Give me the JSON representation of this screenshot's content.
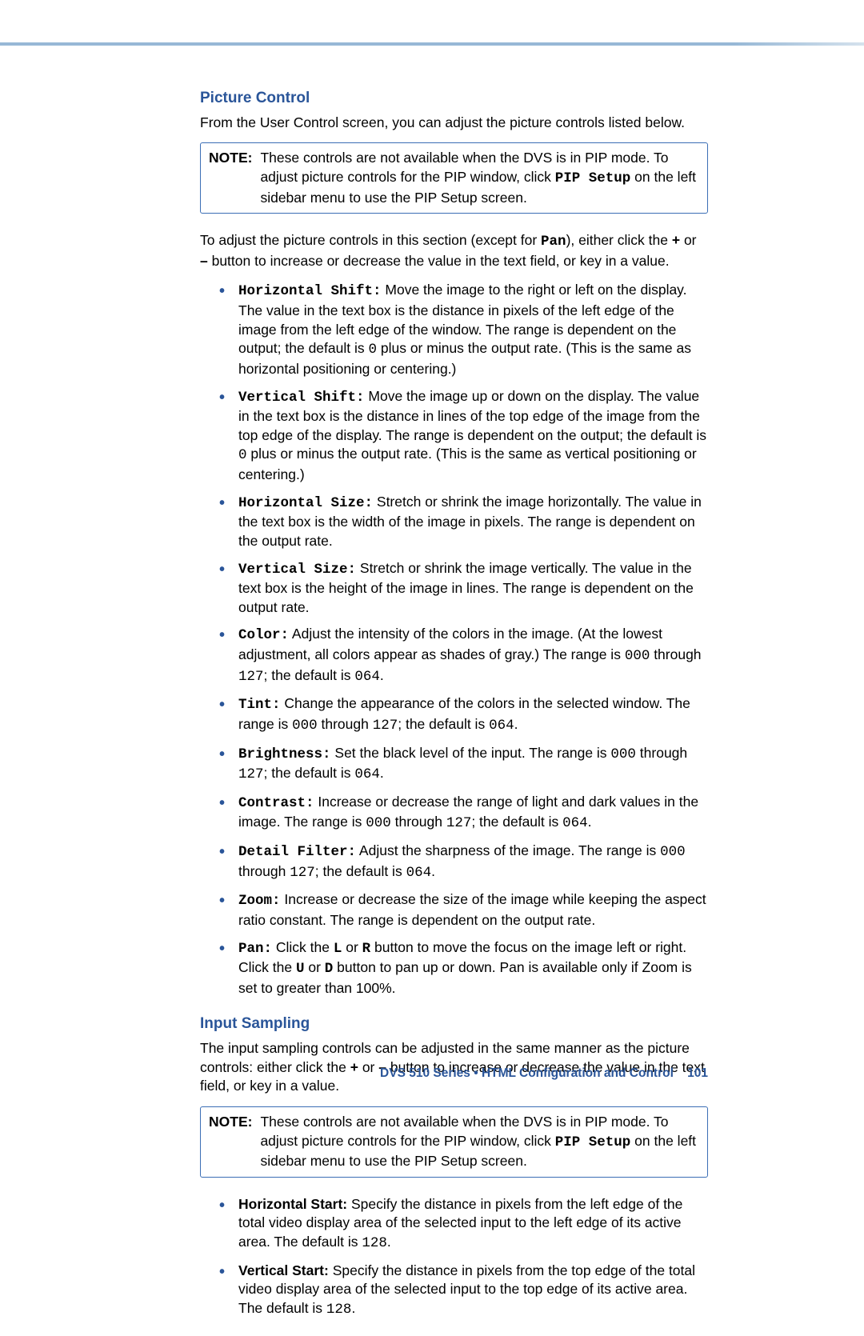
{
  "section1": {
    "heading": "Picture Control",
    "intro": "From the User Control screen, you can adjust the picture controls listed below.",
    "note": {
      "label": "NOTE:",
      "pre": "These controls are not available when the DVS is in PIP mode. To adjust picture controls for the PIP window, click ",
      "code": "PIP Setup",
      "post": " on the left sidebar menu to use the PIP Setup screen."
    },
    "para2": {
      "pre": "To adjust the picture controls in this section (except for ",
      "code1": "Pan",
      "mid1": "), either click the ",
      "plus": "+",
      "mid2": " or ",
      "minus": "–",
      "post": " button to increase or decrease the value in the text field, or key in a value."
    },
    "bullets": [
      {
        "term": "Horizontal Shift:",
        "pre": " Move the image to the right or left on the display. The value in the text box is the distance in pixels of the left edge of the image from the left edge of the window. The range is dependent on the output; the default is ",
        "v": "0",
        "post": " plus or minus the output rate. (This is the same as horizontal positioning or centering.)"
      },
      {
        "term": "Vertical Shift:",
        "pre": " Move the image up or down on the display.  The value in the text box is the distance in lines of the top edge of the image from the top edge of the display. The range is dependent on the output; the default is ",
        "v": "0",
        "post": " plus or minus the output rate. (This is the same as vertical positioning or centering.)"
      },
      {
        "term": "Horizontal Size:",
        "pre": " Stretch or shrink the image horizontally. The value in the text box is the width of the image in pixels. The range is dependent on the output rate.",
        "v": "",
        "post": ""
      },
      {
        "term": "Vertical Size:",
        "pre": " Stretch or shrink the image vertically. The value in the text box is the height of the image in lines. The range is dependent on the output rate.",
        "v": "",
        "post": ""
      },
      {
        "term": "Color:",
        "pre": " Adjust the intensity of the colors in the image. (At the lowest adjustment, all colors appear as shades of gray.) The range is ",
        "v": "000",
        "mid": " through ",
        "v2": "127",
        "mid2": "; the default is ",
        "v3": "064",
        "post": "."
      },
      {
        "term": "Tint:",
        "pre": " Change the appearance of the colors in the selected window. The range is ",
        "v": "000",
        "mid": " through ",
        "v2": "127",
        "mid2": "; the default is ",
        "v3": "064",
        "post": "."
      },
      {
        "term": "Brightness:",
        "pre": " Set the black level of the input. The range is ",
        "v": "000",
        "mid": " through ",
        "v2": "127",
        "mid2": "; the default is ",
        "v3": "064",
        "post": "."
      },
      {
        "term": "Contrast:",
        "pre": " Increase or decrease the range of light and dark values in the image.  The range is ",
        "v": "000",
        "mid": " through ",
        "v2": "127",
        "mid2": "; the default is ",
        "v3": "064",
        "post": "."
      },
      {
        "term": "Detail Filter:",
        "pre": " Adjust the sharpness of the image. The range is ",
        "v": "000",
        "mid": " through ",
        "v2": "127",
        "mid2": "; the default is ",
        "v3": "064",
        "post": "."
      },
      {
        "term": "Zoom:",
        "pre": " Increase or decrease the size of the image while keeping the aspect ratio constant. The range is dependent on the output rate.",
        "v": "",
        "post": ""
      },
      {
        "term": "Pan:",
        "pre": " Click the ",
        "c1": "L",
        "m1": " or ",
        "c2": "R",
        "m2": " button to move the focus on the image left or right. Click the ",
        "c3": "U",
        "m3": " or ",
        "c4": "D",
        "post": " button to pan up or down. Pan is available only if Zoom is set to greater than 100%."
      }
    ]
  },
  "section2": {
    "heading": "Input Sampling",
    "intro": {
      "pre": "The input sampling controls can be adjusted in the same manner as the picture controls: either click the ",
      "plus": "+",
      "mid": " or ",
      "minus": "–",
      "post": " button to increase or decrease the value in the text field, or key in a value."
    },
    "note": {
      "label": "NOTE:",
      "pre": "These controls are not available when the DVS is in PIP mode. To adjust picture controls for the PIP window, click ",
      "code": "PIP Setup",
      "post": " on the left sidebar menu to use the PIP Setup screen."
    },
    "bullets": [
      {
        "term": "Horizontal Start:",
        "pre": " Specify the distance in pixels from the left edge of the total video display area of the selected input to the left edge of its active area. The default is ",
        "v": "128",
        "post": "."
      },
      {
        "term": "Vertical Start:",
        "pre": " Specify the distance in pixels from the top edge of the total video display area of the selected input to the top edge of its active area. The default is ",
        "v": "128",
        "post": "."
      }
    ]
  },
  "footer": {
    "text": "DVS 510 Series • HTML Configuration and Control",
    "page": "101"
  }
}
